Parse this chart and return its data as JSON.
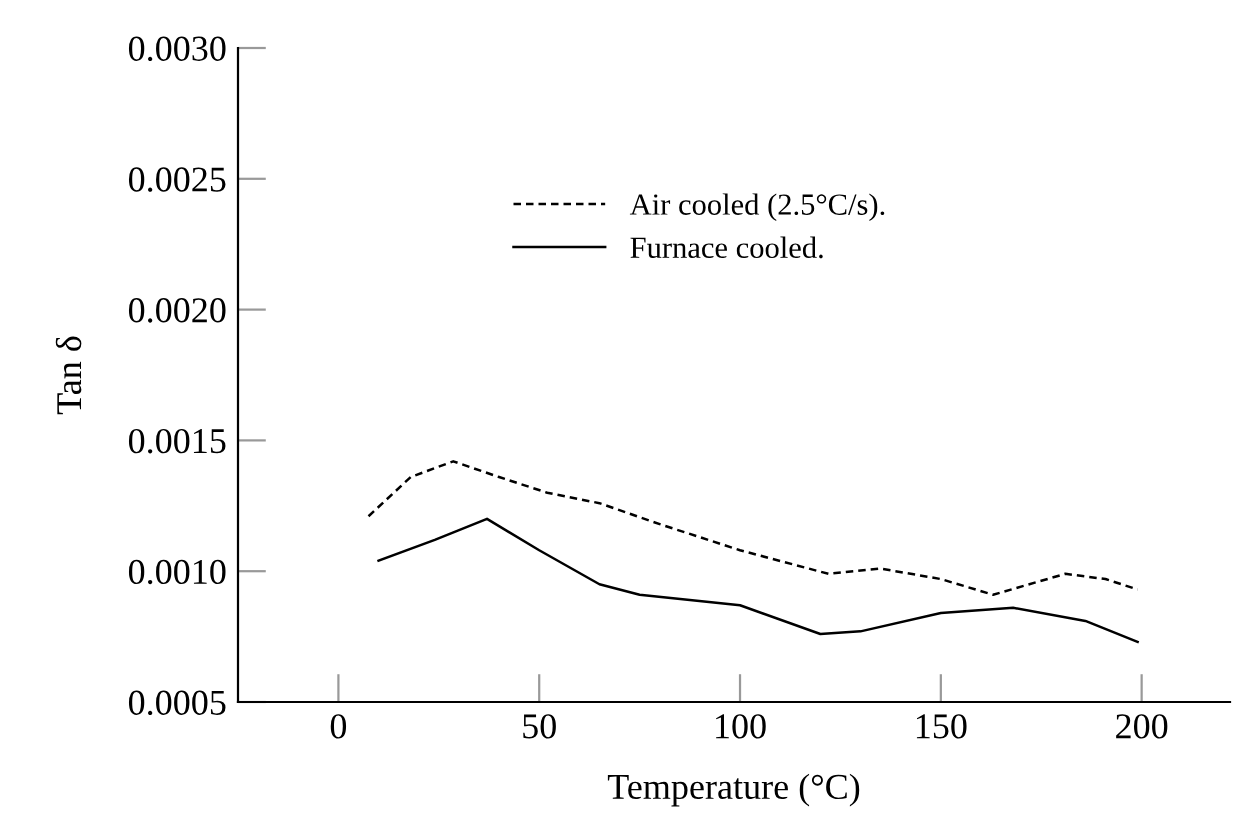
{
  "chart_data": {
    "type": "line",
    "xlabel": "Temperature (°C)",
    "ylabel": "Tan δ",
    "xlim": [
      -25,
      222
    ],
    "xticks": [
      0,
      50,
      100,
      150,
      200
    ],
    "ylim": [
      0.0005,
      0.003
    ],
    "yticks": [
      {
        "value": 0.0005,
        "label": "0.0005"
      },
      {
        "value": 0.001,
        "label": "0.0010"
      },
      {
        "value": 0.0015,
        "label": "0.0015"
      },
      {
        "value": 0.002,
        "label": "0.0020"
      },
      {
        "value": 0.0025,
        "label": "0.0025"
      },
      {
        "value": 0.003,
        "label": "0.0030"
      }
    ],
    "grid": false,
    "legend": "top",
    "marker": "none",
    "series": [
      {
        "name": "Air cooled (2.5°C/s).",
        "color": "#000000",
        "line_style": "dashed",
        "x": [
          7.5,
          18,
          28.6,
          40,
          52,
          65,
          80,
          100,
          122,
          135,
          150,
          163,
          181,
          191,
          199
        ],
        "values": [
          0.00121,
          0.00136,
          0.00142,
          0.00136,
          0.0013,
          0.00126,
          0.00118,
          0.00108,
          0.00099,
          0.00101,
          0.00097,
          0.00091,
          0.00099,
          0.00097,
          0.00093
        ]
      },
      {
        "name": "Furnace cooled.",
        "color": "#000000",
        "line_style": "solid",
        "x": [
          10,
          24,
          37,
          50,
          65,
          75,
          100,
          120,
          130,
          150,
          168,
          186,
          199
        ],
        "values": [
          0.00104,
          0.00112,
          0.0012,
          0.00108,
          0.00095,
          0.00091,
          0.00087,
          0.00076,
          0.00077,
          0.00084,
          0.00086,
          0.00081,
          0.00073
        ]
      }
    ]
  }
}
